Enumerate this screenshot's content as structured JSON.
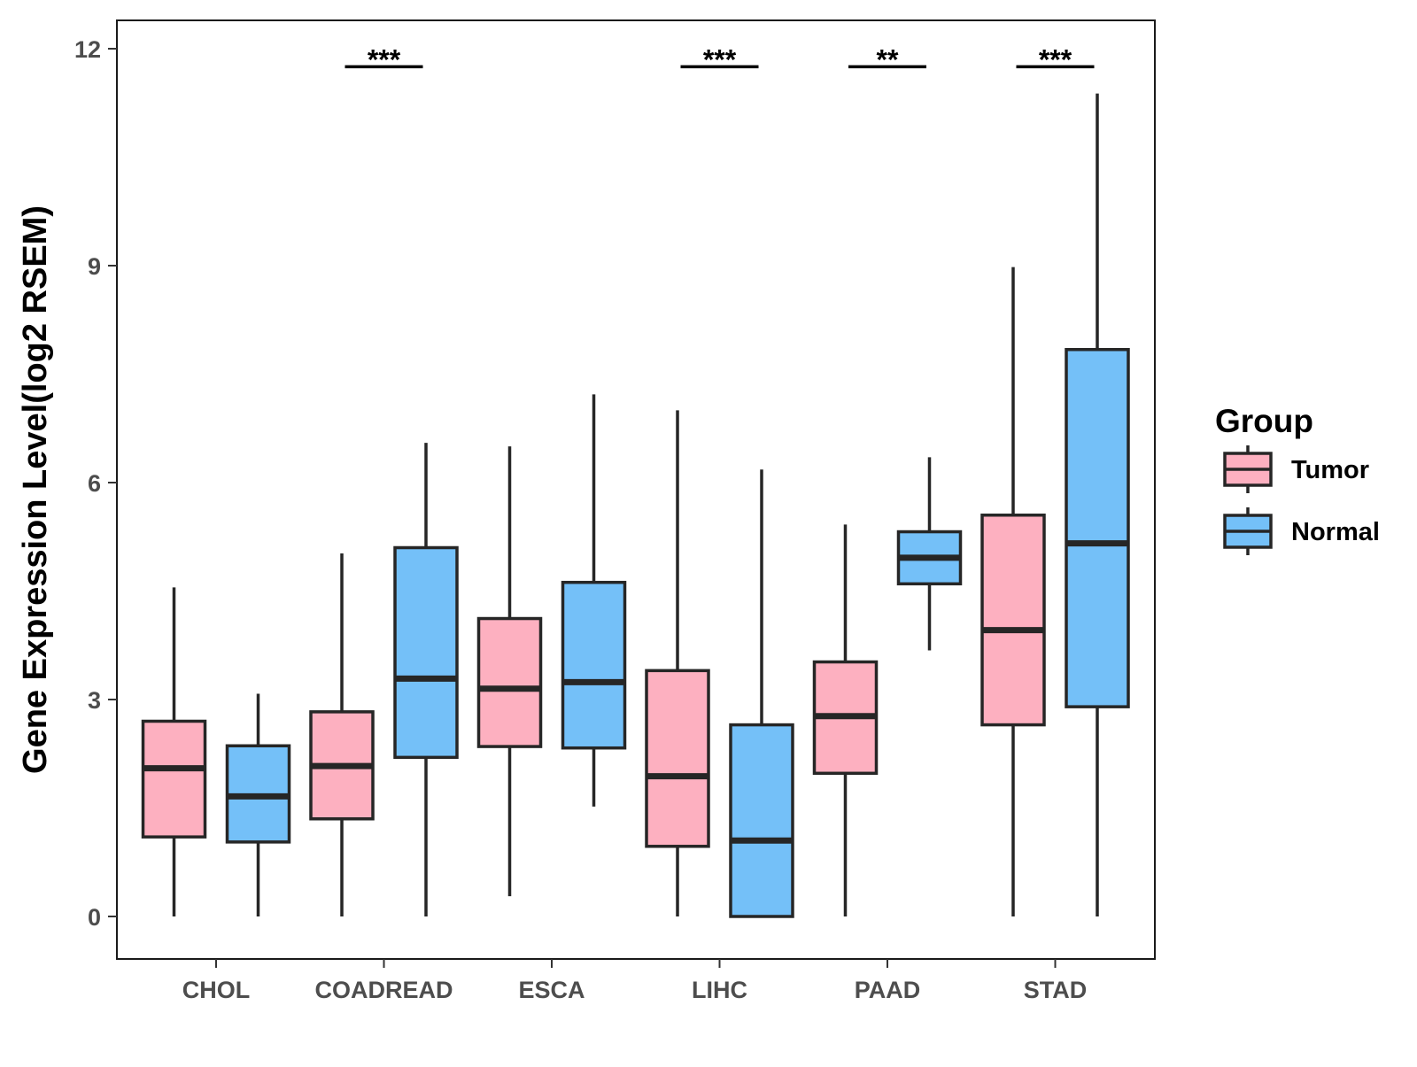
{
  "chart_data": {
    "type": "boxplot",
    "title": "",
    "xlabel": "",
    "ylabel": "Gene Expression Level(log2 RSEM)",
    "ylim": [
      -0.57,
      12.4
    ],
    "yticks": [
      0,
      3,
      6,
      9,
      12
    ],
    "categories": [
      "CHOL",
      "COADREAD",
      "ESCA",
      "LIHC",
      "PAAD",
      "STAD"
    ],
    "grid": false,
    "legend": {
      "title": "Group",
      "position": "right"
    },
    "series": [
      {
        "name": "Tumor",
        "color": "#FDB0C0",
        "boxes": [
          {
            "whisker_low": 0.0,
            "q1": 1.1,
            "median": 2.05,
            "q3": 2.7,
            "whisker_high": 4.55
          },
          {
            "whisker_low": 0.0,
            "q1": 1.35,
            "median": 2.08,
            "q3": 2.83,
            "whisker_high": 5.02
          },
          {
            "whisker_low": 0.28,
            "q1": 2.35,
            "median": 3.15,
            "q3": 4.12,
            "whisker_high": 6.5
          },
          {
            "whisker_low": 0.0,
            "q1": 0.97,
            "median": 1.94,
            "q3": 3.4,
            "whisker_high": 7.0
          },
          {
            "whisker_low": 0.0,
            "q1": 1.98,
            "median": 2.77,
            "q3": 3.52,
            "whisker_high": 5.42
          },
          {
            "whisker_low": 0.0,
            "q1": 2.65,
            "median": 3.96,
            "q3": 5.55,
            "whisker_high": 8.98
          }
        ]
      },
      {
        "name": "Normal",
        "color": "#74C0F8",
        "boxes": [
          {
            "whisker_low": 0.0,
            "q1": 1.03,
            "median": 1.66,
            "q3": 2.36,
            "whisker_high": 3.08
          },
          {
            "whisker_low": 0.0,
            "q1": 2.2,
            "median": 3.29,
            "q3": 5.1,
            "whisker_high": 6.55
          },
          {
            "whisker_low": 1.52,
            "q1": 2.33,
            "median": 3.24,
            "q3": 4.62,
            "whisker_high": 7.22
          },
          {
            "whisker_low": 0.0,
            "q1": 0.0,
            "median": 1.05,
            "q3": 2.65,
            "whisker_high": 6.18
          },
          {
            "whisker_low": 3.68,
            "q1": 4.6,
            "median": 4.96,
            "q3": 5.32,
            "whisker_high": 6.35
          },
          {
            "whisker_low": 0.0,
            "q1": 2.9,
            "median": 5.16,
            "q3": 7.84,
            "whisker_high": 11.38
          }
        ]
      }
    ],
    "significance": [
      {
        "category": "COADREAD",
        "label": "***"
      },
      {
        "category": "LIHC",
        "label": "***"
      },
      {
        "category": "PAAD",
        "label": "**"
      },
      {
        "category": "STAD",
        "label": "***"
      }
    ],
    "significance_y": 11.75
  }
}
